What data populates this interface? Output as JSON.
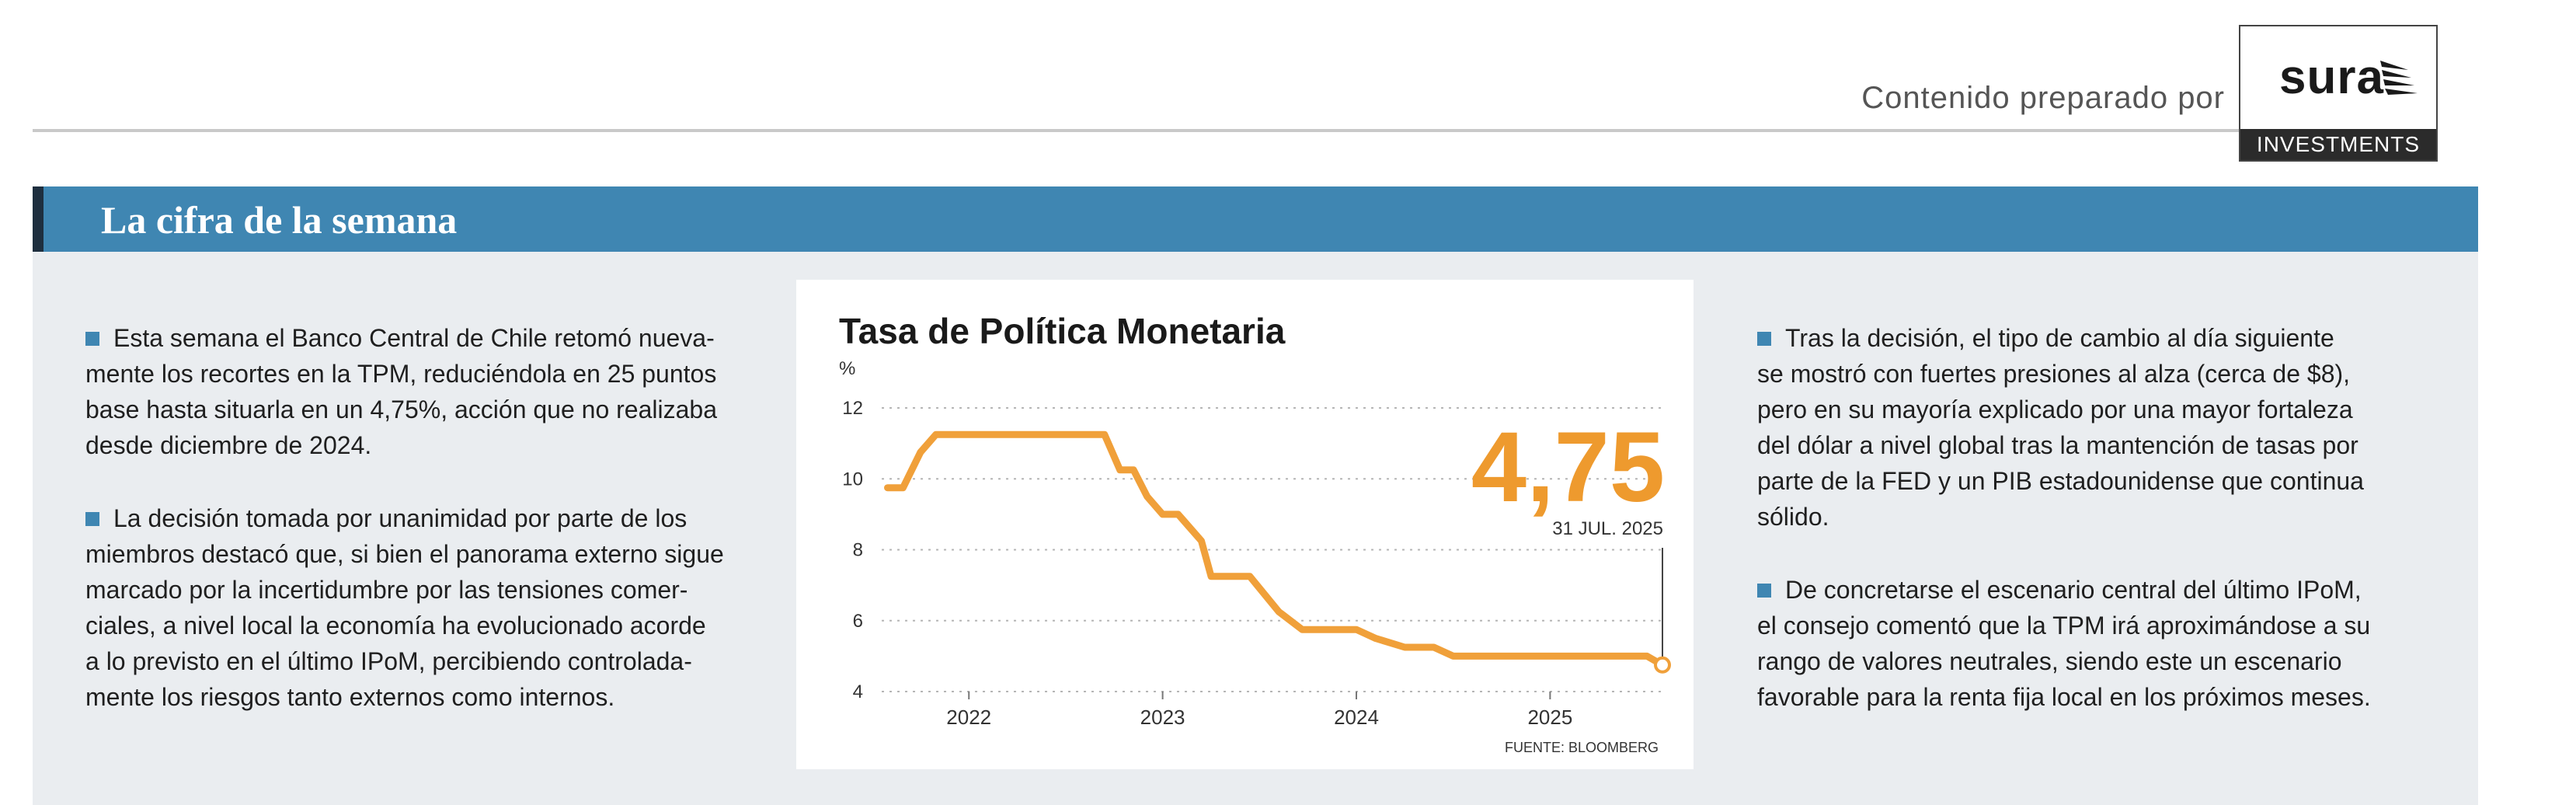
{
  "header": {
    "prepared_by": "Contenido preparado por",
    "logo_word": "sura",
    "logo_sub": "INVESTMENTS"
  },
  "banner": {
    "title": "La cifra de la semana"
  },
  "left_column": {
    "paragraphs": [
      "Esta semana el Banco Central de Chile retomó nueva-\nmente los recortes en la TPM, reduciéndola en 25 puntos\nbase hasta situarla en un 4,75%, acción que no realizaba\ndesde diciembre de 2024.",
      "La decisión tomada por unanimidad por parte de los\nmiembros destacó que, si bien el panorama externo sigue\nmarcado por la incertidumbre por las tensiones comer-\nciales, a nivel local la economía ha evolucionado acorde\na lo previsto en el último IPoM, percibiendo controlada-\nmente los riesgos tanto externos como internos."
    ]
  },
  "right_column": {
    "paragraphs": [
      "Tras la decisión, el tipo de cambio al día siguiente\nse mostró con fuertes presiones al alza (cerca de $8),\npero en su mayoría explicado por una mayor fortaleza\ndel dólar a nivel global tras la mantención de tasas por\nparte de la FED y un PIB estadounidense que continua\nsólido.",
      "De concretarse el escenario central del último IPoM,\nel consejo comentó que la TPM irá aproximándose a su\nrango de valores neutrales, siendo este un escenario\nfavorable para la renta fija local en los próximos meses."
    ]
  },
  "colors": {
    "accent_blue": "#3f86b2",
    "line_orange": "#f0a03a",
    "value_orange": "#ee9a2e",
    "panel_bg": "#eaedf0"
  },
  "chart_data": {
    "type": "line",
    "title": "Tasa de Política Monetaria",
    "ylabel": "%",
    "ylim": [
      4,
      12
    ],
    "yticks": [
      4,
      6,
      8,
      10,
      12
    ],
    "xticks": [
      {
        "label": "2022",
        "x": 2022.0
      },
      {
        "label": "2023",
        "x": 2023.0
      },
      {
        "label": "2024",
        "x": 2024.0
      },
      {
        "label": "2025",
        "x": 2025.0
      }
    ],
    "xlim": [
      2021.55,
      2025.6
    ],
    "grid": true,
    "source": "FUENTE: BLOOMBERG",
    "highlight": {
      "value": "4,75",
      "date": "31 JUL. 2025",
      "x": 2025.58,
      "y": 4.75
    },
    "series": [
      {
        "points": [
          [
            2021.58,
            9.75
          ],
          [
            2021.66,
            9.75
          ],
          [
            2021.75,
            10.75
          ],
          [
            2021.83,
            11.25
          ],
          [
            2022.0,
            11.25
          ],
          [
            2022.3,
            11.25
          ],
          [
            2022.5,
            11.25
          ],
          [
            2022.7,
            11.25
          ],
          [
            2022.78,
            10.25
          ],
          [
            2022.85,
            10.25
          ],
          [
            2022.92,
            9.5
          ],
          [
            2023.0,
            9.0
          ],
          [
            2023.08,
            9.0
          ],
          [
            2023.2,
            8.25
          ],
          [
            2023.25,
            7.25
          ],
          [
            2023.45,
            7.25
          ],
          [
            2023.6,
            6.25
          ],
          [
            2023.72,
            5.75
          ],
          [
            2023.9,
            5.75
          ],
          [
            2024.0,
            5.75
          ],
          [
            2024.1,
            5.5
          ],
          [
            2024.25,
            5.25
          ],
          [
            2024.4,
            5.25
          ],
          [
            2024.5,
            5.0
          ],
          [
            2024.7,
            5.0
          ],
          [
            2024.9,
            5.0
          ],
          [
            2025.1,
            5.0
          ],
          [
            2025.3,
            5.0
          ],
          [
            2025.5,
            5.0
          ],
          [
            2025.58,
            4.75
          ]
        ]
      }
    ]
  }
}
